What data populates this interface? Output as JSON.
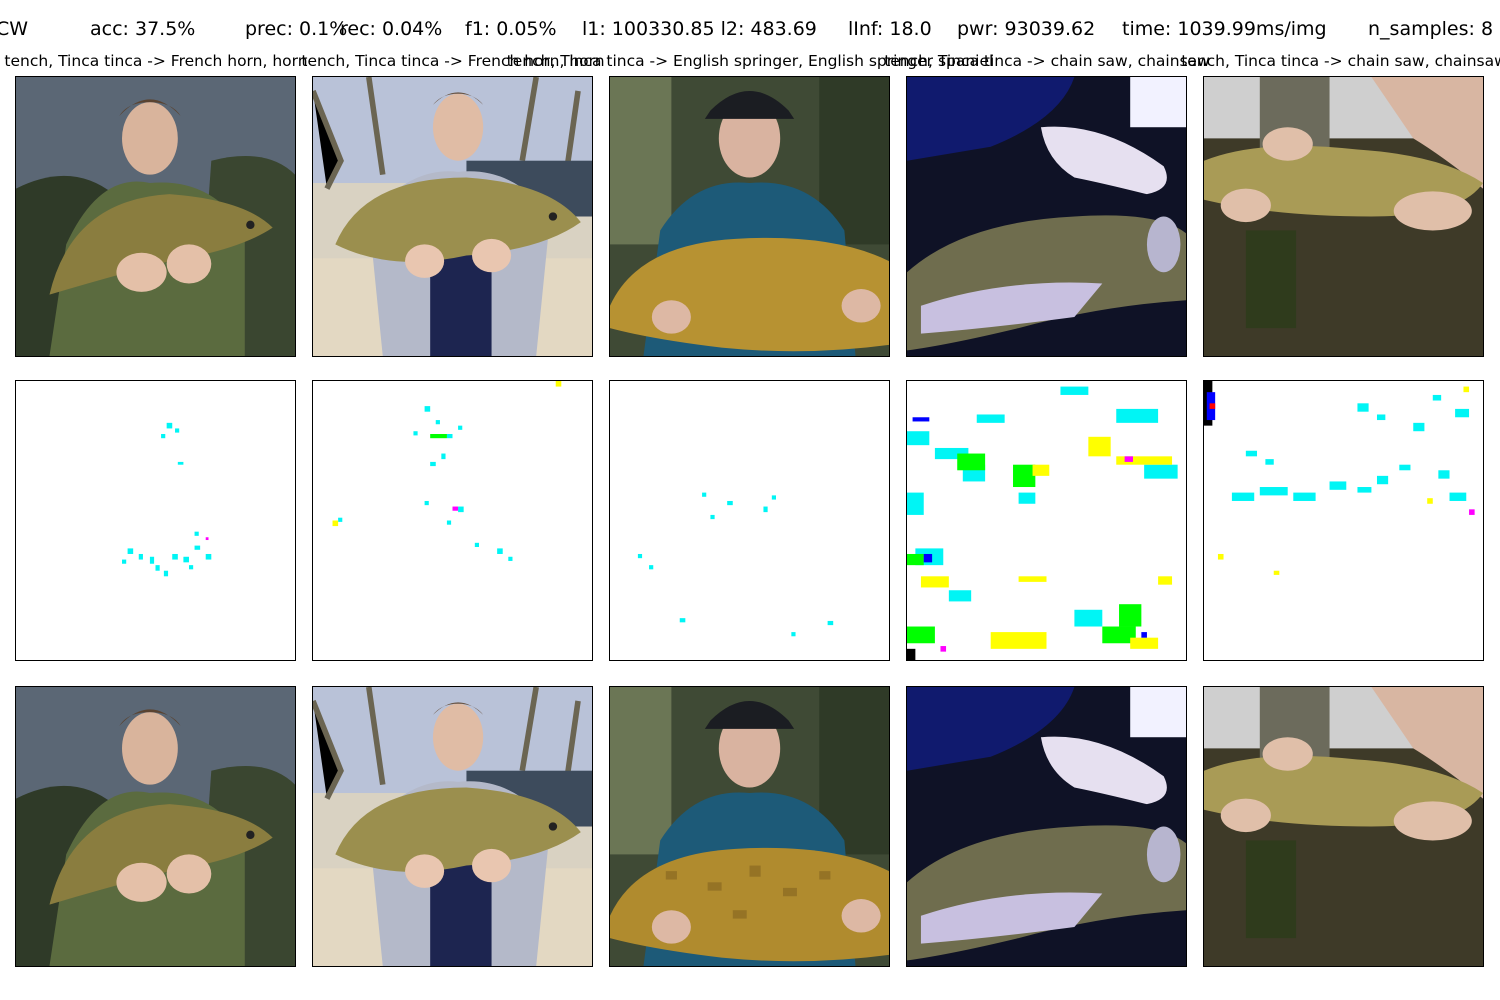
{
  "header": {
    "method": "CW",
    "metrics": [
      "acc: 37.5%",
      "prec: 0.1%",
      "rec: 0.04%",
      "f1: 0.05%",
      "l1: 100330.85 l2: 483.69",
      "lInf: 18.0",
      "pwr: 93039.62",
      "time: 1039.99ms/img",
      "n_samples: 8"
    ]
  },
  "columns": [
    {
      "caption": "tench, Tinca tinca -> French horn, horn",
      "image": "fisherman-with-tench-camo-jacket"
    },
    {
      "caption": "tench, Tinca tinca -> French horn, horn",
      "image": "fisherman-with-tench-riverbank"
    },
    {
      "caption": "tench, Tinca tinca -> English springer, English springer spaniel",
      "image": "fisherman-blue-fleece-with-tench"
    },
    {
      "caption": "tench, Tinca tinca -> chain saw, chainsaw",
      "image": "hands-holding-tench-over-net"
    },
    {
      "caption": "tench, Tinca tinca -> chain saw, chainsaw",
      "image": "hands-holding-tench-over-water"
    }
  ],
  "rows": [
    "original-image",
    "perturbation-map",
    "adversarial-image"
  ],
  "colors": {
    "perturb_cyan": "#00f5f5",
    "perturb_yellow": "#ffff00",
    "perturb_green": "#00ff00",
    "perturb_magenta": "#ff00ff",
    "perturb_blue": "#0000ff"
  }
}
